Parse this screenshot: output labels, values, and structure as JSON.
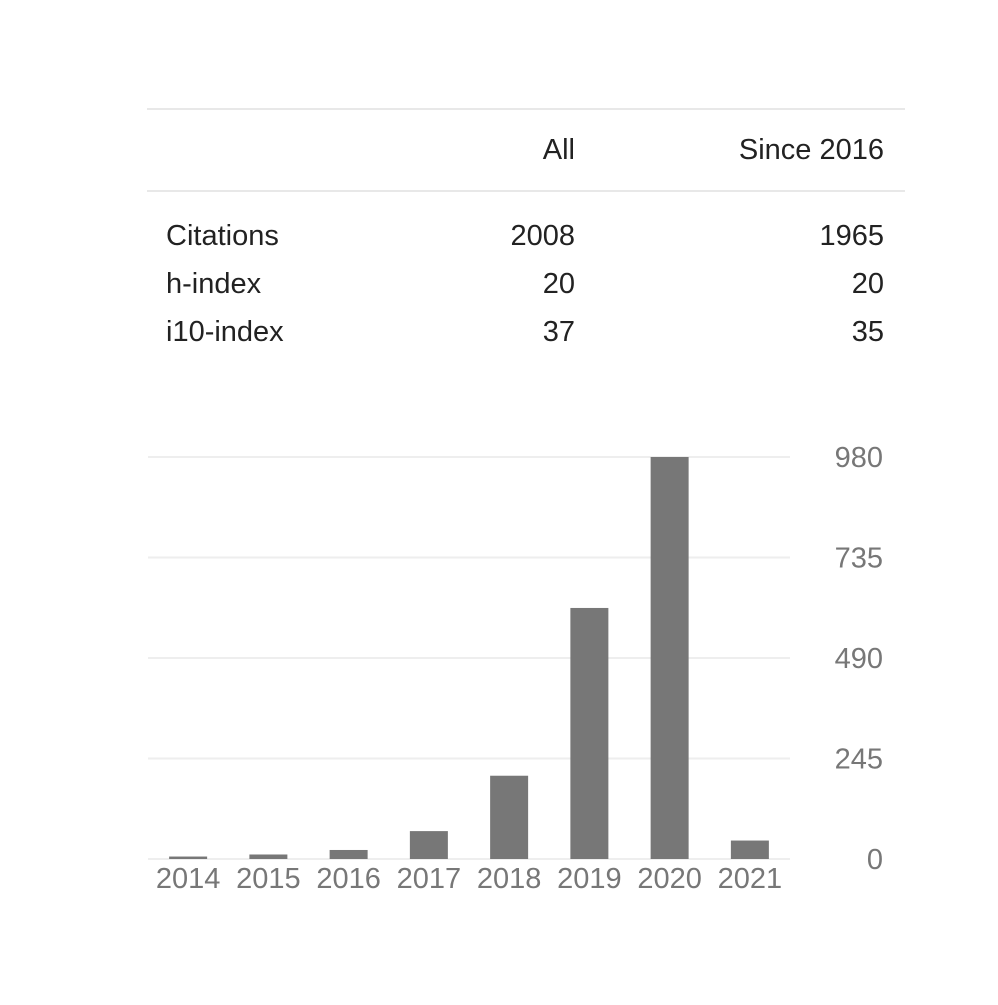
{
  "stats": {
    "headers": {
      "all": "All",
      "since": "Since 2016"
    },
    "rows": [
      {
        "label": "Citations",
        "all": "2008",
        "since": "1965"
      },
      {
        "label": "h-index",
        "all": "20",
        "since": "20"
      },
      {
        "label": "i10-index",
        "all": "37",
        "since": "35"
      }
    ]
  },
  "chart_data": {
    "type": "bar",
    "title": "",
    "xlabel": "",
    "ylabel": "",
    "categories": [
      "2014",
      "2015",
      "2016",
      "2017",
      "2018",
      "2019",
      "2020",
      "2021"
    ],
    "values": [
      6,
      11,
      22,
      68,
      203,
      612,
      980,
      45
    ],
    "ylim": [
      0,
      980
    ],
    "yticks": [
      0,
      245,
      490,
      735,
      980
    ],
    "ytick_labels": [
      "0",
      "245",
      "490",
      "735",
      "980"
    ],
    "grid": true,
    "y_axis_side": "right",
    "colors": {
      "bar": "#777777",
      "gridline": "#eeeeee",
      "tick_label": "#777777"
    }
  }
}
